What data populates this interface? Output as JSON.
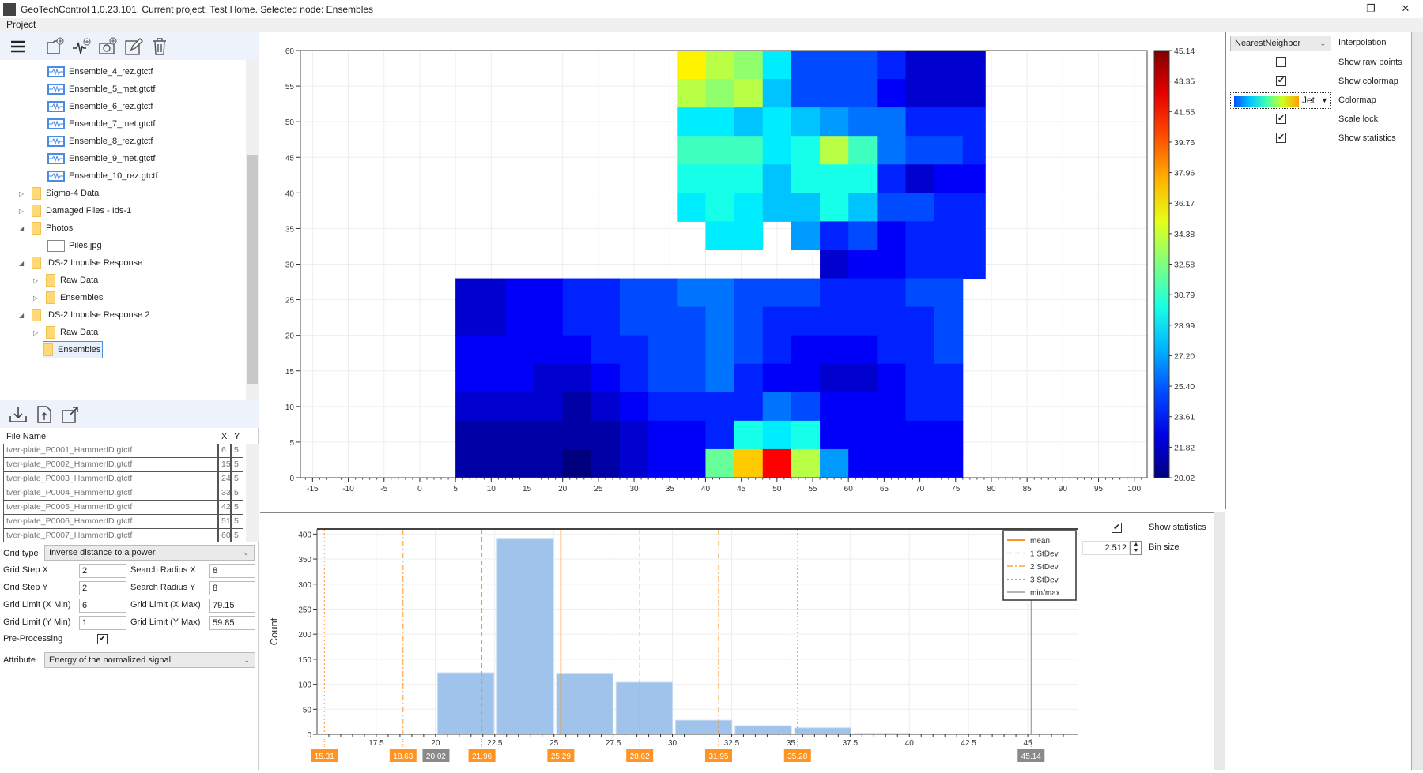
{
  "window": {
    "title": "GeoTechControl 1.0.23.101. Current project: Test Home. Selected node: Ensembles",
    "minimize": "—",
    "restore": "❐",
    "close": "✕"
  },
  "menu": {
    "project": "Project"
  },
  "toolbar": {
    "icons": [
      "menu-icon",
      "add-folder-icon",
      "add-signal-icon",
      "add-photo-icon",
      "edit-icon",
      "delete-icon"
    ]
  },
  "tree": {
    "items": [
      {
        "label": "Ensemble_4_rez.gtctf",
        "type": "wave",
        "level": 3
      },
      {
        "label": "Ensemble_5_met.gtctf",
        "type": "wave",
        "level": 3
      },
      {
        "label": "Ensemble_6_rez.gtctf",
        "type": "wave",
        "level": 3
      },
      {
        "label": "Ensemble_7_met.gtctf",
        "type": "wave",
        "level": 3
      },
      {
        "label": "Ensemble_8_rez.gtctf",
        "type": "wave",
        "level": 3
      },
      {
        "label": "Ensemble_9_met.gtctf",
        "type": "wave",
        "level": 3
      },
      {
        "label": "Ensemble_10_rez.gtctf",
        "type": "wave",
        "level": 3
      },
      {
        "label": "Sigma-4 Data",
        "type": "folder",
        "level": 1,
        "expand": "collapsed"
      },
      {
        "label": "Damaged Files - Ids-1",
        "type": "folder",
        "level": 1,
        "expand": "collapsed"
      },
      {
        "label": "Photos",
        "type": "folder",
        "level": 1,
        "expand": "expanded"
      },
      {
        "label": "Piles.jpg",
        "type": "image",
        "level": 3
      },
      {
        "label": "IDS-2 Impulse Response",
        "type": "folder",
        "level": 1,
        "expand": "expanded"
      },
      {
        "label": "Raw Data",
        "type": "folder",
        "level": 2,
        "expand": "collapsed"
      },
      {
        "label": "Ensembles",
        "type": "folder",
        "level": 2,
        "expand": "collapsed"
      },
      {
        "label": "IDS-2 Impulse Response 2",
        "type": "folder",
        "level": 1,
        "expand": "expanded"
      },
      {
        "label": "Raw Data",
        "type": "folder",
        "level": 2,
        "expand": "collapsed"
      },
      {
        "label": "Ensembles",
        "type": "folder",
        "level": 2,
        "expand": "collapsed",
        "selected": true
      }
    ]
  },
  "table": {
    "headers": [
      "File Name",
      "X",
      "Y"
    ],
    "rows": [
      [
        "tver-plate_P0001_HammerID.gtctf",
        "6",
        "5"
      ],
      [
        "tver-plate_P0002_HammerID.gtctf",
        "15",
        "5"
      ],
      [
        "tver-plate_P0003_HammerID.gtctf",
        "24",
        "5"
      ],
      [
        "tver-plate_P0004_HammerID.gtctf",
        "33",
        "5"
      ],
      [
        "tver-plate_P0005_HammerID.gtctf",
        "42",
        "5"
      ],
      [
        "tver-plate_P0006_HammerID.gtctf",
        "51",
        "5"
      ],
      [
        "tver-plate_P0007_HammerID.gtctf",
        "60",
        "5"
      ]
    ]
  },
  "form": {
    "grid_type_label": "Grid type",
    "grid_type": "Inverse distance to a power",
    "grid_step_x_label": "Grid Step X",
    "grid_step_x": "2",
    "grid_step_y_label": "Grid Step Y",
    "grid_step_y": "2",
    "search_radius_x_label": "Search Radius X",
    "search_radius_x": "8",
    "search_radius_y_label": "Search Radius Y",
    "search_radius_y": "8",
    "xmin_label": "Grid Limit (X Min)",
    "xmin": "6",
    "xmax_label": "Grid Limit (X Max)",
    "xmax": "79.15",
    "ymin_label": "Grid Limit (Y Min)",
    "ymin": "1",
    "ymax_label": "Grid Limit (Y Max)",
    "ymax": "59.85",
    "preprocessing_label": "Pre-Processing",
    "preprocessing": true,
    "attribute_label": "Attribute",
    "attribute": "Energy of the normalized signal"
  },
  "settings": {
    "interpolation": "NearestNeighbor",
    "interpolation_label": "Interpolation",
    "show_raw_points_label": "Show raw points",
    "show_raw_points": false,
    "show_colormap_label": "Show colormap",
    "show_colormap": true,
    "colormap": "Jet",
    "colormap_label": "Colormap",
    "scale_lock_label": "Scale lock",
    "scale_lock": true,
    "show_statistics_label": "Show statistics",
    "show_statistics": true
  },
  "hist_settings": {
    "show_statistics_label": "Show statistics",
    "show_statistics": true,
    "bin_size": "2.512",
    "bin_size_label": "Bin size"
  },
  "chart_data": [
    {
      "type": "heatmap",
      "colormap": "jet",
      "xlim": [
        -16.7,
        101.8
      ],
      "ylim": [
        0,
        60
      ],
      "xticks": [
        -15,
        -10,
        -5,
        0,
        5,
        10,
        15,
        20,
        25,
        30,
        35,
        40,
        45,
        50,
        55,
        60,
        65,
        70,
        75,
        80,
        85,
        90,
        95,
        100
      ],
      "yticks": [
        0,
        5,
        10,
        15,
        20,
        25,
        30,
        35,
        40,
        45,
        50,
        55,
        60
      ],
      "colorbar": {
        "min": 20.02,
        "max": 45.14,
        "ticks": [
          "45.14",
          "43.35",
          "41.55",
          "39.76",
          "37.96",
          "36.17",
          "34.38",
          "32.58",
          "30.79",
          "28.99",
          "27.20",
          "25.40",
          "23.61",
          "21.82",
          "20.02"
        ]
      },
      "cell_x": [
        4,
        8,
        12,
        16,
        20,
        24,
        28,
        32,
        36,
        40,
        44,
        48,
        52,
        56,
        60,
        64,
        68,
        72,
        76
      ],
      "cell_y_top_down": [
        56,
        52,
        48,
        44,
        40,
        36,
        32,
        28,
        24,
        20,
        16,
        12,
        8,
        4,
        0
      ],
      "cell_size": 4,
      "values": [
        [
          null,
          null,
          null,
          null,
          null,
          null,
          null,
          null,
          36,
          34,
          33,
          29,
          25,
          25,
          25,
          24,
          22,
          22,
          22
        ],
        [
          null,
          null,
          null,
          null,
          null,
          null,
          null,
          null,
          34,
          33,
          34,
          28,
          25,
          25,
          25,
          23,
          22,
          22,
          22
        ],
        [
          null,
          null,
          null,
          null,
          null,
          null,
          null,
          null,
          29,
          29,
          28,
          29,
          28,
          27,
          26,
          26,
          24,
          24,
          24
        ],
        [
          null,
          null,
          null,
          null,
          null,
          null,
          null,
          null,
          31,
          31,
          31,
          29,
          30,
          34,
          31,
          26,
          25,
          25,
          24
        ],
        [
          null,
          null,
          null,
          null,
          null,
          null,
          null,
          null,
          30,
          30,
          30,
          28,
          30,
          30,
          30,
          24,
          22,
          23,
          23
        ],
        [
          null,
          null,
          null,
          null,
          null,
          null,
          null,
          null,
          29,
          30,
          29,
          28,
          28,
          30,
          28,
          25,
          25,
          24,
          24
        ],
        [
          null,
          null,
          null,
          null,
          null,
          null,
          null,
          null,
          null,
          29,
          29,
          null,
          27,
          24,
          25,
          23,
          24,
          24,
          24
        ],
        [
          null,
          null,
          null,
          null,
          null,
          null,
          null,
          null,
          null,
          null,
          null,
          null,
          null,
          22,
          23,
          23,
          24,
          24,
          24
        ],
        [
          22,
          22,
          23,
          23,
          24,
          24,
          25,
          25,
          26,
          26,
          25,
          25,
          25,
          24,
          24,
          24,
          25,
          25,
          null
        ],
        [
          22,
          22,
          23,
          23,
          24,
          24,
          25,
          25,
          25,
          26,
          25,
          24,
          24,
          24,
          24,
          24,
          24,
          25,
          null
        ],
        [
          23,
          23,
          23,
          23,
          23,
          24,
          24,
          25,
          25,
          26,
          25,
          24,
          23,
          23,
          23,
          24,
          24,
          25,
          null
        ],
        [
          23,
          23,
          23,
          22,
          22,
          23,
          24,
          25,
          25,
          26,
          24,
          23,
          23,
          22,
          22,
          23,
          24,
          24,
          null
        ],
        [
          22,
          22,
          22,
          22,
          21,
          22,
          23,
          24,
          24,
          24,
          24,
          26,
          25,
          23,
          23,
          23,
          24,
          24,
          null
        ],
        [
          21,
          21,
          21,
          21,
          21,
          21,
          22,
          23,
          23,
          24,
          30,
          29,
          30,
          23,
          23,
          23,
          23,
          23,
          null
        ],
        [
          21,
          21,
          21,
          21,
          20,
          21,
          22,
          23,
          23,
          32,
          37,
          42,
          34,
          27,
          23,
          23,
          23,
          23,
          null
        ]
      ]
    },
    {
      "type": "bar",
      "ylabel": "Count",
      "xlim": [
        15.0,
        47.1
      ],
      "ylim": [
        0,
        410
      ],
      "yticks": [
        0,
        50,
        100,
        150,
        200,
        250,
        300,
        350,
        400
      ],
      "xticks": [
        "17.5",
        "20",
        "22.5",
        "25",
        "27.5",
        "30",
        "32.5",
        "35",
        "37.5",
        "40",
        "42.5",
        "45"
      ],
      "bin_start": 20.02,
      "bin_width": 2.512,
      "counts": [
        123,
        390,
        122,
        104,
        28,
        17,
        13,
        2,
        0,
        0
      ],
      "bar_color": "#9fc3ea",
      "stat_lines": [
        {
          "kind": "3sd",
          "value": 15.31,
          "label": "15.31"
        },
        {
          "kind": "2sd",
          "value": 18.63,
          "label": "18.63"
        },
        {
          "kind": "minmax",
          "value": 20.02,
          "label": "20.02"
        },
        {
          "kind": "1sd",
          "value": 21.96,
          "label": "21.96"
        },
        {
          "kind": "mean",
          "value": 25.29,
          "label": "25.29"
        },
        {
          "kind": "1sd",
          "value": 28.62,
          "label": "28.62"
        },
        {
          "kind": "2sd",
          "value": 31.95,
          "label": "31.95"
        },
        {
          "kind": "3sd",
          "value": 35.28,
          "label": "35.28"
        },
        {
          "kind": "minmax",
          "value": 45.14,
          "label": "45.14"
        }
      ],
      "legend": {
        "placement": "top-right",
        "entries": [
          {
            "kind": "mean",
            "label": "mean"
          },
          {
            "kind": "1sd",
            "label": "1 StDev"
          },
          {
            "kind": "2sd",
            "label": "2 StDev"
          },
          {
            "kind": "3sd",
            "label": "3 StDev"
          },
          {
            "kind": "minmax",
            "label": "min/max"
          }
        ]
      },
      "colors": {
        "stat": "#ff9422",
        "minmax": "#8a8a8a"
      }
    }
  ]
}
